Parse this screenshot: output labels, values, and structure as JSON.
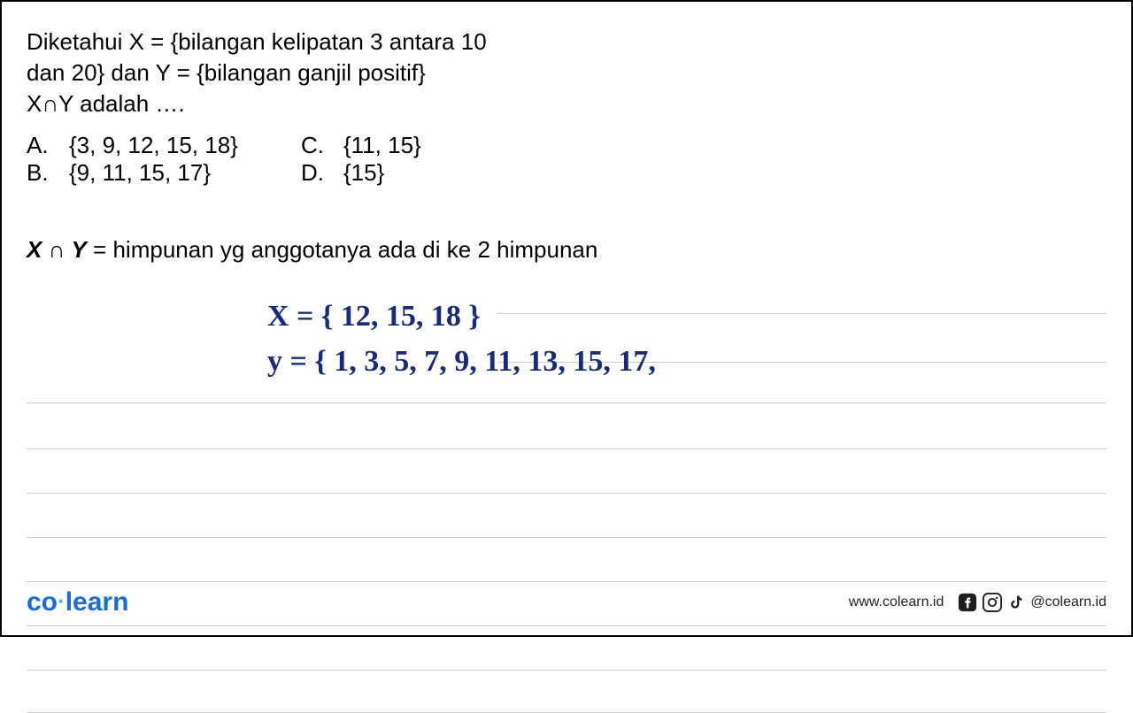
{
  "question": {
    "line1": "Diketahui X = {bilangan kelipatan 3 antara 10",
    "line2": "dan 20} dan Y = {bilangan ganjil positif}",
    "line3_prefix": " X",
    "line3_cap": "∩",
    "line3_suffix": "Y adalah …."
  },
  "options": {
    "a_label": "A.",
    "a_text": "{3, 9, 12, 15, 18}",
    "b_label": "B.",
    "b_text": "{9, 11, 15, 17}",
    "c_label": "C.",
    "c_text": "{11, 15}",
    "d_label": "D.",
    "d_text": "{15}"
  },
  "explain": {
    "expr_x": "X",
    "expr_cap": " ∩ ",
    "expr_y": "Y",
    "expr_eq": " = ",
    "text": "himpunan yg anggotanya ada di ke 2 himpunan"
  },
  "handwriting": {
    "line1": "X = { 12, 15, 18 }",
    "line2": "y = { 1, 3, 5, 7, 9, 11, 13, 15, 17,"
  },
  "footer": {
    "logo_co": "co",
    "logo_dot": "·",
    "logo_learn": "learn",
    "url": "www.colearn.id",
    "handle": "@colearn.id"
  },
  "rules": {
    "positions": [
      177,
      232,
      278,
      330,
      380,
      430,
      480,
      530,
      580,
      628
    ],
    "full_from_index": 2,
    "color": "#cccccc"
  },
  "colors": {
    "text": "#000000",
    "handwriting": "#1a2a7a",
    "logo_primary": "#1a6dd9",
    "logo_dot": "#4db1e8",
    "icon": "#1e1e1e",
    "background": "#ffffff"
  }
}
